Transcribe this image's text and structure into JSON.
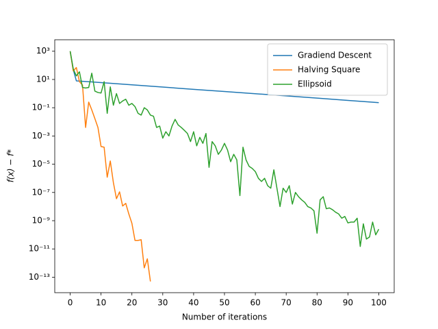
{
  "chart_data": {
    "type": "line",
    "xlabel": "Number of iterations",
    "ylabel": "f(x) − f*",
    "yscale": "log",
    "legend": "upper right",
    "grid": false,
    "xlim": [
      -5,
      105
    ],
    "xticks": [
      0,
      10,
      20,
      30,
      40,
      50,
      60,
      70,
      80,
      90,
      100
    ],
    "ylim": [
      6500,
      8e-15
    ],
    "yticks": [
      {
        "value": 1000,
        "label": "10³"
      },
      {
        "value": 10,
        "label": "10¹"
      },
      {
        "value": 0.1,
        "label": "10⁻¹"
      },
      {
        "value": 0.001,
        "label": "10⁻³"
      },
      {
        "value": 1e-05,
        "label": "10⁻⁵"
      },
      {
        "value": 1e-07,
        "label": "10⁻⁷"
      },
      {
        "value": 1e-09,
        "label": "10⁻⁹"
      },
      {
        "value": 1e-11,
        "label": "10⁻¹¹"
      },
      {
        "value": 1e-13,
        "label": "10⁻¹³"
      }
    ],
    "series": [
      {
        "name": "Gradiend Descent",
        "color": "#1f77b4",
        "x": [
          0,
          1,
          2,
          10,
          20,
          30,
          40,
          50,
          60,
          70,
          80,
          90,
          100
        ],
        "values": [
          1000,
          50,
          8,
          6,
          4.2,
          2.9,
          2,
          1.4,
          0.98,
          0.69,
          0.48,
          0.33,
          0.23
        ]
      },
      {
        "name": "Halving Square",
        "color": "#ff7f0e",
        "x": [
          0,
          1,
          2,
          3,
          4,
          5,
          6,
          7,
          8,
          9,
          10,
          11,
          12,
          13,
          14,
          15,
          16,
          17,
          18,
          19,
          20,
          21,
          22,
          23,
          24,
          25,
          26
        ],
        "values": [
          1000,
          40,
          70,
          7,
          4,
          0.004,
          0.25,
          0.07,
          0.017,
          0.004,
          0.00018,
          0.00016,
          1.2e-06,
          1.7e-05,
          5e-07,
          3.6e-08,
          1.1e-07,
          1.1e-08,
          1.7e-08,
          3e-09,
          6.6e-10,
          4e-11,
          4e-11,
          4.5e-11,
          4.6e-13,
          2e-12,
          5e-14
        ]
      },
      {
        "name": "Ellipsoid",
        "color": "#2ca02c",
        "x": [
          0,
          1,
          2,
          3,
          4,
          5,
          6,
          7,
          8,
          9,
          10,
          11,
          12,
          13,
          14,
          15,
          16,
          17,
          18,
          19,
          20,
          21,
          22,
          23,
          24,
          25,
          26,
          27,
          28,
          29,
          30,
          31,
          32,
          33,
          34,
          35,
          36,
          37,
          38,
          39,
          40,
          41,
          42,
          43,
          44,
          45,
          46,
          47,
          48,
          49,
          50,
          51,
          52,
          53,
          54,
          55,
          56,
          57,
          58,
          59,
          60,
          61,
          62,
          63,
          64,
          65,
          66,
          67,
          68,
          69,
          70,
          71,
          72,
          73,
          74,
          75,
          76,
          77,
          78,
          79,
          80,
          81,
          82,
          83,
          84,
          85,
          86,
          87,
          88,
          89,
          90,
          91,
          92,
          93,
          94,
          95,
          96,
          97,
          98,
          99,
          100
        ],
        "values": [
          1000,
          55,
          18,
          35,
          2.7,
          2.5,
          2.7,
          28,
          1.5,
          1.2,
          1.1,
          7,
          0.04,
          3,
          0.15,
          1,
          0.2,
          0.3,
          0.4,
          0.15,
          0.2,
          0.12,
          0.04,
          0.03,
          0.1,
          0.07,
          0.03,
          0.025,
          0.004,
          0.005,
          0.0007,
          0.002,
          0.001,
          0.005,
          0.015,
          0.006,
          0.004,
          0.0025,
          0.0015,
          0.0004,
          0.002,
          0.0002,
          0.0008,
          0.0003,
          0.0015,
          6e-06,
          0.0004,
          0.0002,
          5e-05,
          0.0001,
          0.0003,
          0.0001,
          1.5e-05,
          5e-05,
          2e-05,
          6e-08,
          0.00016,
          2e-05,
          7e-06,
          5e-06,
          3e-06,
          1e-06,
          6e-07,
          1e-06,
          3e-07,
          2e-07,
          4e-06,
          2e-07,
          1e-08,
          2e-07,
          1e-07,
          3e-07,
          1.5e-08,
          1e-07,
          5e-08,
          3e-08,
          2e-08,
          1e-08,
          8e-09,
          5e-09,
          1.3e-10,
          3e-08,
          5e-08,
          7e-09,
          8e-09,
          6e-09,
          4e-09,
          3e-09,
          1.5e-09,
          2e-09,
          7e-10,
          8e-10,
          8e-10,
          1.5e-09,
          1.5e-11,
          6e-10,
          5e-11,
          7e-11,
          8e-10,
          1e-10,
          2.5e-10
        ]
      }
    ]
  }
}
